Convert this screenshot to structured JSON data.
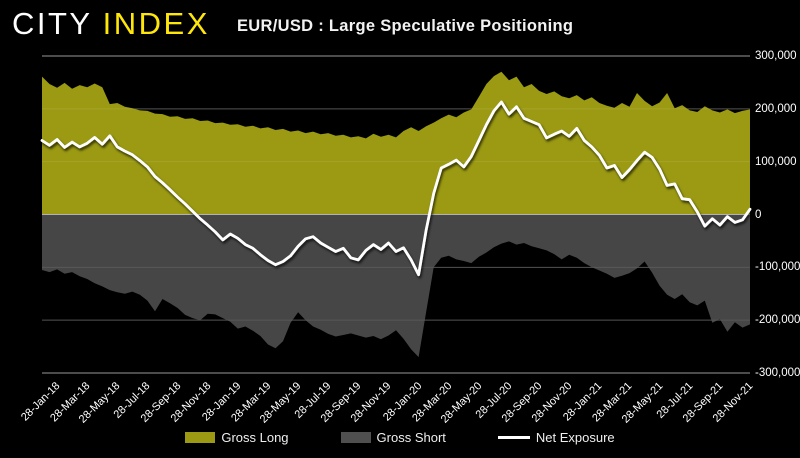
{
  "header": {
    "logo": {
      "city": "CITY",
      "index": "INDEX"
    },
    "title": "EUR/USD : Large Speculative Positioning"
  },
  "colors": {
    "background": "#000000",
    "logo_yellow": "#ffe70c",
    "gross_long": "#9b9a12",
    "gross_short": "#464646",
    "net_exposure": "#ffffff",
    "gridline_major": "#7a7a7a",
    "gridline_minor_alpha": "rgba(255,255,255,0.25)",
    "zero_line": "#b2b2b2",
    "axis_text": "#ffffff"
  },
  "chart_data": {
    "type": "area",
    "title": "EUR/USD : Large Speculative Positioning",
    "x_start_label": "28-Jan-18",
    "x_step_months": 0.5,
    "grid": true,
    "legend_position": "bottom",
    "ylim": [
      -300000,
      300000
    ],
    "y_ticks_thousands": [
      300,
      200,
      100,
      0,
      -100,
      -200,
      -300
    ],
    "y_tick_labels": [
      "300,000",
      "200,000",
      "100,000",
      "0",
      "-100,000",
      "-200,000",
      "-300,000"
    ],
    "x_tick_labels": [
      "28-Jan-18",
      "28-Mar-18",
      "28-May-18",
      "28-Jul-18",
      "28-Sep-18",
      "28-Nov-18",
      "28-Jan-19",
      "28-Mar-19",
      "28-May-19",
      "28-Jul-19",
      "28-Sep-19",
      "28-Nov-19",
      "28-Jan-20",
      "28-Mar-20",
      "28-May-20",
      "28-Jul-20",
      "28-Sep-20",
      "28-Nov-20",
      "28-Jan-21",
      "28-Mar-21",
      "28-May-21",
      "28-Jul-21",
      "28-Sep-21",
      "28-Nov-21"
    ],
    "series": [
      {
        "name": "Gross Long",
        "type": "area",
        "color": "#9b9a12",
        "values_thousands": [
          261,
          247,
          240,
          249,
          238,
          245,
          241,
          248,
          241,
          209,
          211,
          204,
          201,
          197,
          196,
          191,
          190,
          185,
          186,
          181,
          182,
          177,
          178,
          173,
          174,
          170,
          171,
          166,
          168,
          163,
          165,
          160,
          162,
          157,
          159,
          154,
          157,
          152,
          154,
          149,
          151,
          146,
          148,
          144,
          153,
          147,
          151,
          146,
          158,
          165,
          158,
          167,
          174,
          182,
          189,
          184,
          193,
          199,
          223,
          247,
          262,
          270,
          254,
          261,
          241,
          247,
          234,
          228,
          233,
          224,
          220,
          226,
          216,
          222,
          211,
          206,
          202,
          211,
          204,
          230,
          215,
          205,
          212,
          230,
          201,
          207,
          197,
          194,
          205,
          197,
          193,
          199,
          192,
          196,
          199
        ]
      },
      {
        "name": "Gross Short",
        "type": "area",
        "color": "#464646",
        "values_thousands": [
          -105,
          -109,
          -104,
          -112,
          -109,
          -117,
          -122,
          -130,
          -136,
          -143,
          -147,
          -150,
          -146,
          -152,
          -163,
          -183,
          -160,
          -168,
          -177,
          -190,
          -196,
          -200,
          -188,
          -189,
          -196,
          -203,
          -216,
          -212,
          -220,
          -230,
          -246,
          -253,
          -240,
          -205,
          -185,
          -200,
          -212,
          -218,
          -226,
          -231,
          -228,
          -225,
          -229,
          -233,
          -230,
          -236,
          -229,
          -219,
          -235,
          -255,
          -270,
          -185,
          -100,
          -82,
          -78,
          -85,
          -88,
          -92,
          -80,
          -72,
          -62,
          -55,
          -51,
          -57,
          -54,
          -60,
          -64,
          -68,
          -75,
          -85,
          -76,
          -82,
          -92,
          -100,
          -106,
          -112,
          -120,
          -116,
          -111,
          -102,
          -89,
          -110,
          -135,
          -152,
          -160,
          -151,
          -166,
          -172,
          -163,
          -205,
          -198,
          -222,
          -204,
          -214,
          -208
        ]
      },
      {
        "name": "Net Exposure",
        "type": "line",
        "color": "#ffffff",
        "values_thousands": [
          140,
          131,
          142,
          127,
          137,
          128,
          135,
          146,
          133,
          149,
          128,
          120,
          113,
          102,
          90,
          72,
          60,
          47,
          33,
          20,
          6,
          -8,
          -20,
          -33,
          -48,
          -37,
          -45,
          -57,
          -64,
          -76,
          -87,
          -95,
          -89,
          -78,
          -60,
          -46,
          -42,
          -54,
          -62,
          -70,
          -64,
          -82,
          -86,
          -68,
          -57,
          -66,
          -54,
          -70,
          -63,
          -86,
          -114,
          -30,
          40,
          88,
          95,
          103,
          90,
          110,
          140,
          170,
          196,
          213,
          190,
          204,
          182,
          176,
          170,
          145,
          152,
          158,
          148,
          163,
          140,
          128,
          112,
          88,
          93,
          70,
          85,
          102,
          118,
          108,
          86,
          55,
          58,
          30,
          28,
          5,
          -22,
          -8,
          -20,
          -4,
          -15,
          -10,
          10
        ]
      }
    ],
    "legend": [
      "Gross Long",
      "Gross Short",
      "Net Exposure"
    ]
  }
}
